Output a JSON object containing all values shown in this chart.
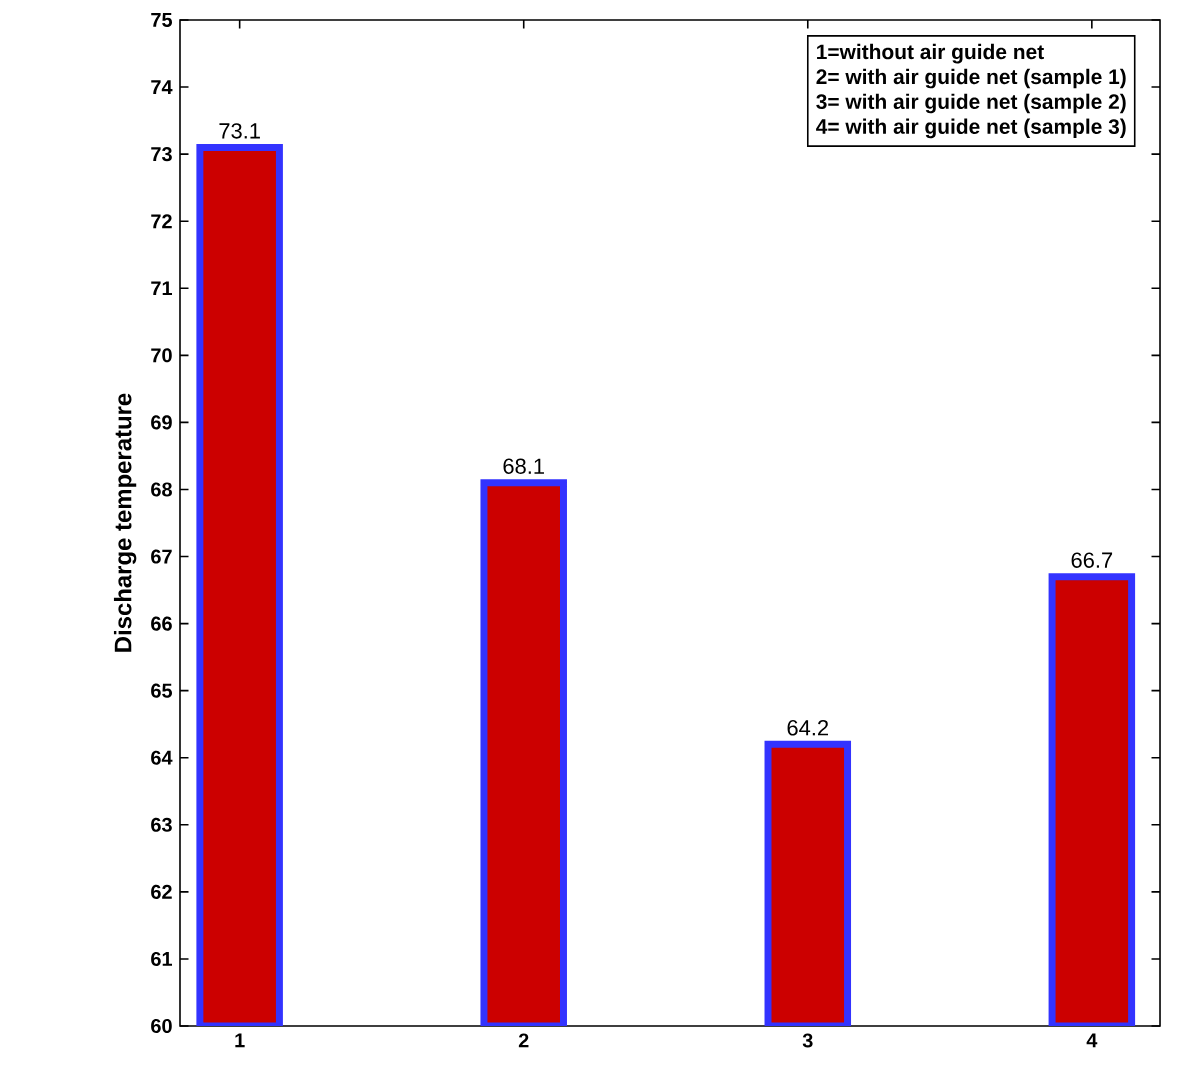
{
  "chart_data": {
    "type": "bar",
    "ylabel": "Discharge temperature",
    "categories": [
      "1",
      "2",
      "3",
      "4"
    ],
    "values": [
      73.1,
      68.1,
      64.2,
      66.7
    ],
    "color": "#cc0000",
    "ylim": [
      60,
      75
    ],
    "yticks": [
      60,
      61,
      62,
      63,
      64,
      65,
      66,
      67,
      68,
      69,
      70,
      71,
      72,
      73,
      74,
      75
    ],
    "data_labels": true,
    "grid": false,
    "annotations": [
      "1=without air guide net",
      "2= with air guide net (sample 1)",
      "3= with air guide net (sample 2)",
      "4= with air guide net (sample 3)"
    ]
  }
}
